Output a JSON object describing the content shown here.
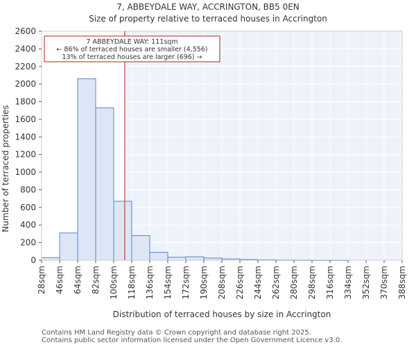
{
  "chart_data": {
    "type": "bar",
    "title_line1": "7, ABBEYDALE WAY, ACCRINGTON, BB5 0EN",
    "title_line2": "Size of property relative to terraced houses in Accrington",
    "xlabel": "Distribution of terraced houses by size in Accrington",
    "ylabel": "Number of terraced properties",
    "ylim": [
      0,
      2600
    ],
    "yticks": [
      0,
      200,
      400,
      600,
      800,
      1000,
      1200,
      1400,
      1600,
      1800,
      2000,
      2200,
      2400,
      2600
    ],
    "bin_edges": [
      28,
      46,
      64,
      82,
      100,
      118,
      136,
      154,
      172,
      190,
      208,
      226,
      244,
      262,
      280,
      298,
      316,
      334,
      352,
      370,
      388
    ],
    "xtick_labels": [
      "28sqm",
      "46sqm",
      "64sqm",
      "82sqm",
      "100sqm",
      "118sqm",
      "136sqm",
      "154sqm",
      "172sqm",
      "190sqm",
      "208sqm",
      "226sqm",
      "244sqm",
      "262sqm",
      "280sqm",
      "298sqm",
      "316sqm",
      "334sqm",
      "352sqm",
      "370sqm",
      "388sqm"
    ],
    "values": [
      30,
      310,
      2060,
      1730,
      670,
      280,
      90,
      35,
      40,
      25,
      15,
      8,
      5,
      3,
      2,
      1,
      1,
      0,
      0,
      0
    ],
    "marker_value": 111,
    "annotation": {
      "line1": "7 ABBEYDALE WAY: 111sqm",
      "line2": "← 86% of terraced houses are smaller (4,556)",
      "line3": "13% of terraced houses are larger (696) →"
    },
    "colors": {
      "bar_fill": "#dce6f5",
      "bar_stroke": "#5b86c5",
      "marker": "#b22222",
      "shade": "#eef2fb"
    }
  },
  "footer": {
    "line1": "Contains HM Land Registry data © Crown copyright and database right 2025.",
    "line2": "Contains public sector information licensed under the Open Government Licence v3.0."
  }
}
